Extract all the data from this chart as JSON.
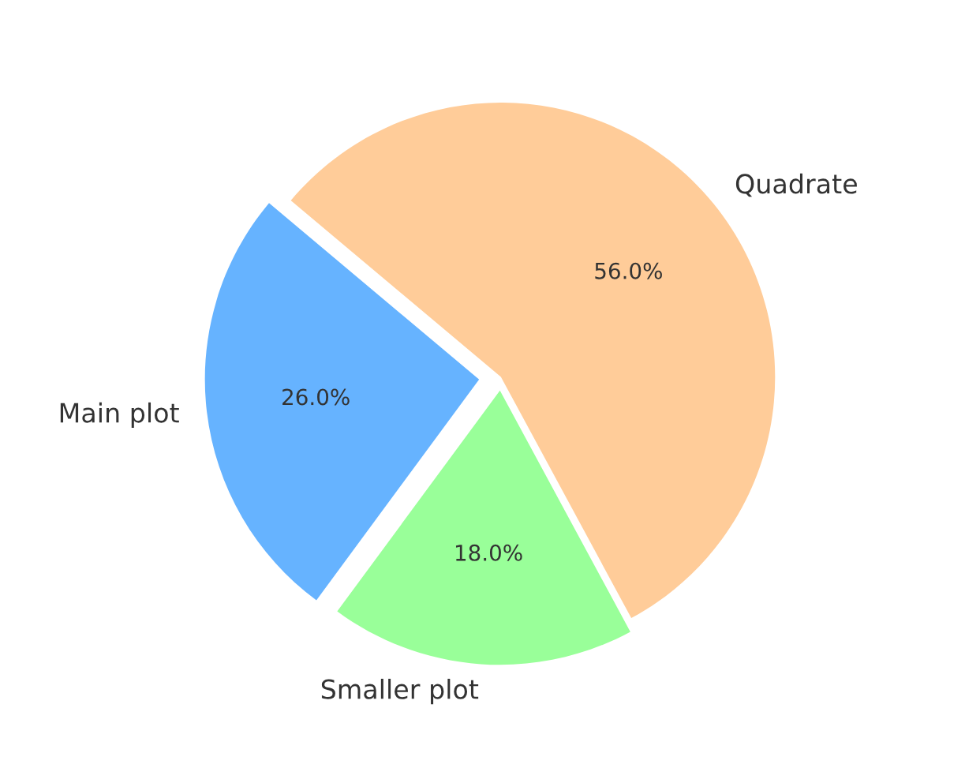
{
  "chart_data": {
    "type": "pie",
    "categories": [
      "Main plot",
      "Smaller plot",
      "Quadrate"
    ],
    "values": [
      26,
      18,
      56
    ],
    "colors": [
      "#66b3ff",
      "#99ff99",
      "#ffcc99"
    ],
    "value_labels": [
      "26.0%",
      "18.0%",
      "56.0%"
    ],
    "legend": false
  }
}
